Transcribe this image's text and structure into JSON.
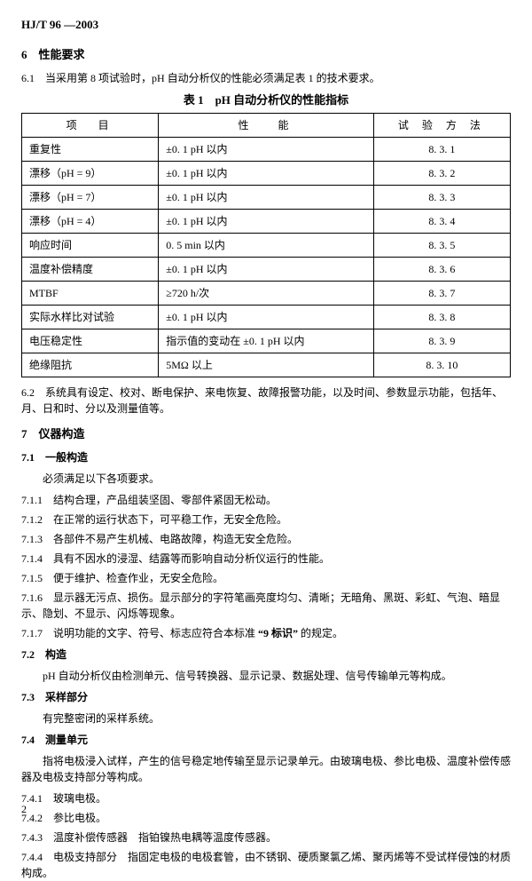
{
  "header": "HJ/T 96 —2003",
  "section6": {
    "title": "6　性能要求",
    "p6_1": "6.1　当采用第 8 项试验时，pH 自动分析仪的性能必须满足表 1 的技术要求。",
    "tableTitle": "表 1　pH 自动分析仪的性能指标",
    "tableHeaders": [
      "项　目",
      "性　 能",
      "试 验 方 法"
    ],
    "tableRows": [
      [
        "重复性",
        "±0. 1 pH 以内",
        "8. 3. 1"
      ],
      [
        "漂移（pH = 9）",
        "±0. 1 pH 以内",
        "8. 3. 2"
      ],
      [
        "漂移（pH  =  7）",
        "±0. 1 pH 以内",
        "8. 3. 3"
      ],
      [
        "漂移（pH  = 4）",
        "±0. 1 pH 以内",
        "8. 3. 4"
      ],
      [
        "响应时间",
        "0. 5  min 以内",
        "8. 3. 5"
      ],
      [
        "温度补偿精度",
        "±0. 1 pH 以内",
        "8. 3. 6"
      ],
      [
        "MTBF",
        "≥720 h/次",
        "8. 3. 7"
      ],
      [
        "实际水样比对试验",
        "±0. 1 pH 以内",
        "8. 3. 8"
      ],
      [
        "电压稳定性",
        "指示值的变动在 ±0. 1 pH 以内",
        "8. 3. 9"
      ],
      [
        "绝缘阻抗",
        "5MΩ 以上",
        "8. 3. 10"
      ]
    ],
    "p6_2": "6.2　系统具有设定、校对、断电保护、来电恢复、故障报警功能，以及时间、参数显示功能，包括年、月、日和时、分以及测量值等。"
  },
  "section7": {
    "title": "7　仪器构造",
    "s7_1": {
      "title": "7.1　一般构造",
      "intro": "必须满足以下各项要求。",
      "items": [
        {
          "n": "7.1.1",
          "t": "结构合理，产品组装坚固、零部件紧固无松动。"
        },
        {
          "n": "7.1.2",
          "t": "在正常的运行状态下，可平稳工作，无安全危险。"
        },
        {
          "n": "7.1.3",
          "t": "各部件不易产生机械、电路故障，构造无安全危险。"
        },
        {
          "n": "7.1.4",
          "t": "具有不因水的浸湿、结露等而影响自动分析仪运行的性能。"
        },
        {
          "n": "7.1.5",
          "t": "便于维护、检查作业，无安全危险。"
        },
        {
          "n": "7.1.6",
          "t": "显示器无污点、损伤。显示部分的字符笔画亮度均匀、清晰；无暗角、黑斑、彩虹、气泡、暗显示、隐划、不显示、闪烁等现象。"
        }
      ],
      "p7_1_7_pre": "7.1.7　说明功能的文字、符号、标志应符合本标准 ",
      "p7_1_7_bold": "“9  标识”",
      "p7_1_7_post": " 的规定。"
    },
    "s7_2": {
      "title": "7.2　构造",
      "body": "pH 自动分析仪由检测单元、信号转换器、显示记录、数据处理、信号传输单元等构成。"
    },
    "s7_3": {
      "title": "7.3　采样部分",
      "body": "有完整密闭的采样系统。"
    },
    "s7_4": {
      "title": "7.4　测量单元",
      "intro": "指将电极浸入试样，产生的信号稳定地传输至显示记录单元。由玻璃电极、参比电极、温度补偿传感器及电极支持部分等构成。",
      "items": [
        {
          "n": "7.4.1",
          "t": "玻璃电极。"
        },
        {
          "n": "7.4.2",
          "t": "参比电极。"
        },
        {
          "n": "7.4.3",
          "t": "温度补偿传感器　指铂镍热电耦等温度传感器。"
        },
        {
          "n": "7.4.4",
          "t": "电极支持部分　指固定电极的电极套管，由不锈钢、硬质聚氯乙烯、聚丙烯等不受试样侵蚀的材质构成。"
        }
      ]
    }
  },
  "pageNum": "2"
}
